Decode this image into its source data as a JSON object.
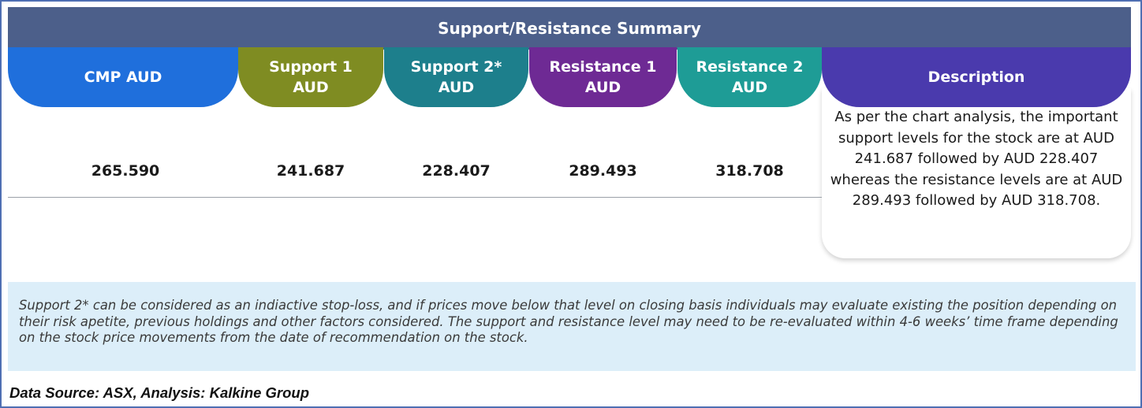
{
  "title": "Support/Resistance Summary",
  "colors": {
    "header": "#4c5f8a",
    "cmp": "#1f6fdc",
    "support1": "#7f8c22",
    "support2": "#1d7f8c",
    "resistance1": "#6e2a94",
    "resistance2": "#1e9c96",
    "description": "#4a3aad",
    "note_bg": "#dceef9"
  },
  "columns": [
    {
      "line1": "CMP AUD",
      "line2": "",
      "value": "265.590"
    },
    {
      "line1": "Support 1",
      "line2": "AUD",
      "value": "241.687"
    },
    {
      "line1": "Support 2*",
      "line2": "AUD",
      "value": "228.407"
    },
    {
      "line1": "Resistance 1",
      "line2": "AUD",
      "value": "289.493"
    },
    {
      "line1": "Resistance 2",
      "line2": "AUD",
      "value": "318.708"
    }
  ],
  "description": {
    "heading": "Description",
    "text": "As per the chart analysis, the important support levels for the stock are at AUD 241.687 followed by AUD 228.407 whereas the resistance levels are at AUD 289.493 followed by AUD 318.708."
  },
  "note": "Support 2* can be considered as an indiactive stop-loss, and if prices move below that level on closing basis individuals may evaluate existing the position depending on their risk apetite, previous holdings and other factors considered. The support and resistance level may need to be re-evaluated within 4-6 weeks’ time frame depending on the stock price movements from  the date of recommendation on the stock.",
  "footer": "Data Source: ASX, Analysis: Kalkine Group"
}
